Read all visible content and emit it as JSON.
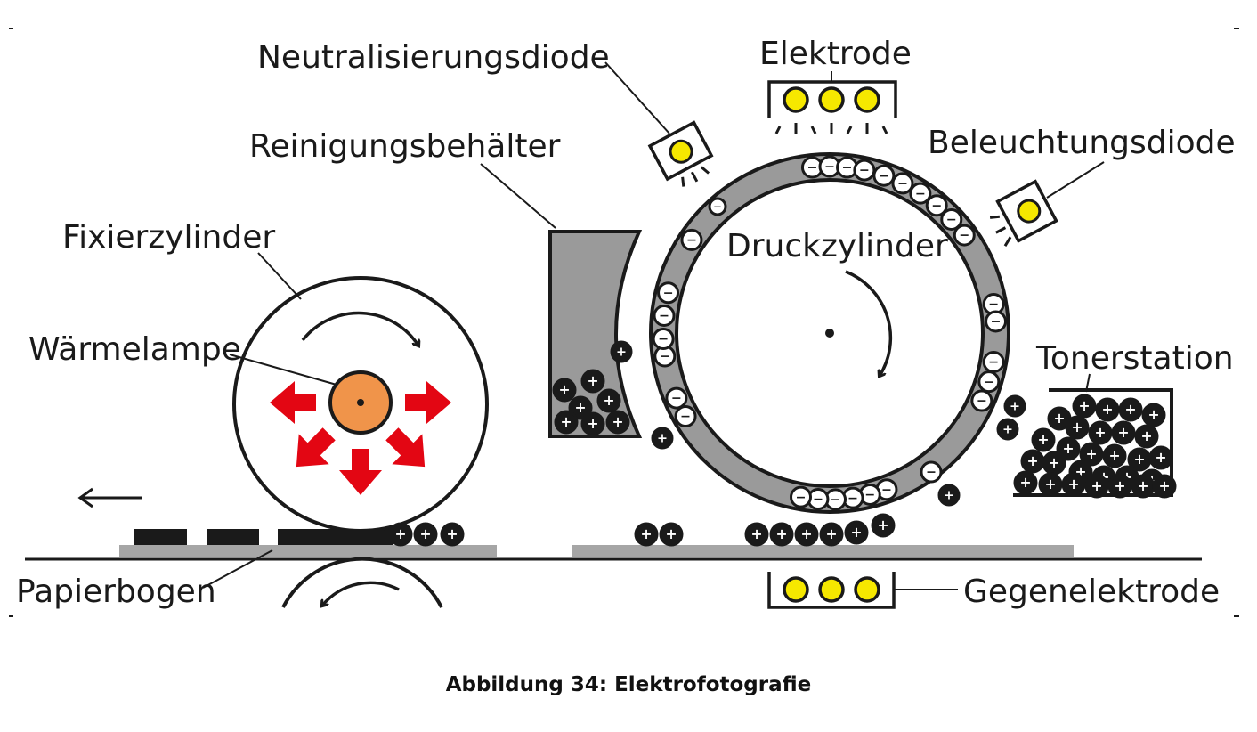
{
  "labels": {
    "neutralisierungsdiode": "Neutralisierungsdiode",
    "elektrode": "Elektrode",
    "beleuchtungsdiode": "Beleuchtungsdiode",
    "reinigungsbehaelter": "Reinigungsbehälter",
    "fixierzylinder": "Fixierzylinder",
    "druckzylinder": "Druckzylinder",
    "waermelampe": "Wärmelampe",
    "tonerstation": "Tonerstation",
    "papierbogen": "Papierbogen",
    "gegenelektrode": "Gegenelektrode"
  },
  "signs": {
    "plus": "+",
    "minus": "−"
  },
  "caption": "Abbildung 34: Elektrofotografie",
  "colors": {
    "ink": "#1a1a1a",
    "drum_ring": "#9a9a9a",
    "paper": "#a6a6a6",
    "heat_arrows": "#e30613",
    "lamp": "#f0944a",
    "diode_light": "#f6e800"
  },
  "icons": [
    "arrow-left-icon",
    "rotation-arrow-icon",
    "heat-arrow-icon",
    "diode-icon"
  ]
}
